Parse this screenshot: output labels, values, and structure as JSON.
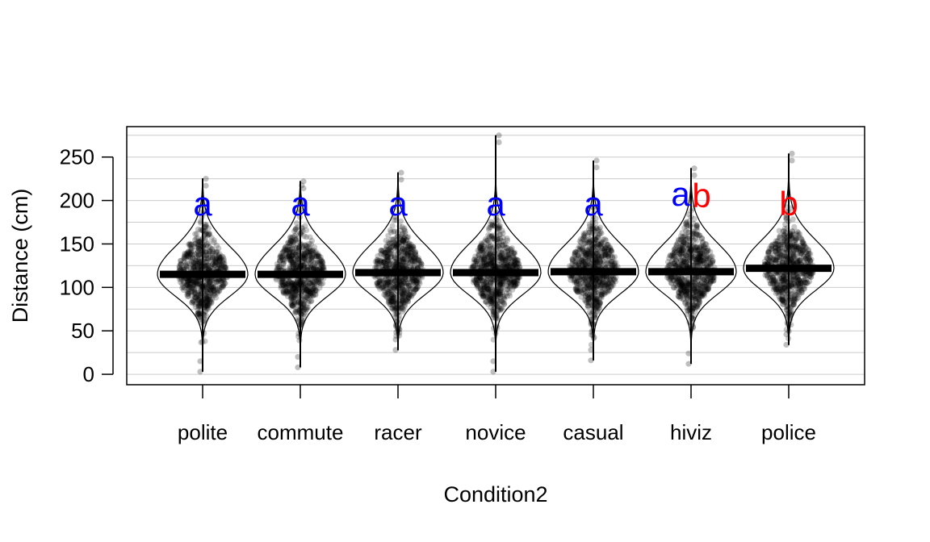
{
  "chart_data": {
    "type": "violin",
    "xlabel": "Condition2",
    "ylabel": "Distance (cm)",
    "ylim": [
      -12,
      285
    ],
    "yticks": [
      0,
      50,
      100,
      150,
      200,
      250
    ],
    "grid": true,
    "categories": [
      "polite",
      "commute",
      "racer",
      "novice",
      "casual",
      "hiviz",
      "police"
    ],
    "means": [
      115,
      115,
      117,
      117,
      118,
      118,
      122
    ],
    "ranges": [
      [
        3,
        225
      ],
      [
        8,
        222
      ],
      [
        28,
        232
      ],
      [
        3,
        275
      ],
      [
        16,
        246
      ],
      [
        12,
        237
      ],
      [
        34,
        254
      ]
    ],
    "letters": [
      [
        {
          "text": "a",
          "color": "#0000ff"
        }
      ],
      [
        {
          "text": "a",
          "color": "#0000ff"
        }
      ],
      [
        {
          "text": "a",
          "color": "#0000ff"
        }
      ],
      [
        {
          "text": "a",
          "color": "#0000ff"
        }
      ],
      [
        {
          "text": "a",
          "color": "#0000ff"
        }
      ],
      [
        {
          "text": "a",
          "color": "#0000ff"
        },
        {
          "text": "b",
          "color": "#ff0000"
        }
      ],
      [
        {
          "text": "b",
          "color": "#ff0000"
        }
      ]
    ]
  }
}
